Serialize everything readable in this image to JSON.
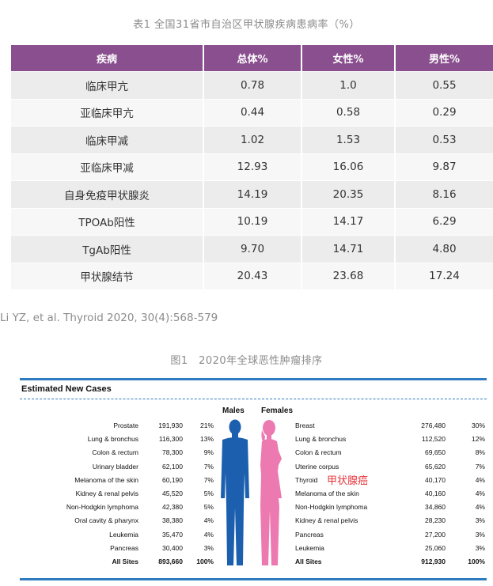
{
  "table1": {
    "caption": "表1 全国31省市自治区甲状腺疾病患病率（%）",
    "headers": [
      "疾病",
      "总体%",
      "女性%",
      "男性%"
    ],
    "rows": [
      [
        "临床甲亢",
        "0.78",
        "1.0",
        "0.55"
      ],
      [
        "亚临床甲亢",
        "0.44",
        "0.58",
        "0.29"
      ],
      [
        "临床甲减",
        "1.02",
        "1.53",
        "0.53"
      ],
      [
        "亚临床甲减",
        "12.93",
        "16.06",
        "9.87"
      ],
      [
        "自身免疫甲状腺炎",
        "14.19",
        "20.35",
        "8.16"
      ],
      [
        "TPOAb阳性",
        "10.19",
        "14.17",
        "6.29"
      ],
      [
        "TgAb阳性",
        "9.70",
        "14.71",
        "4.80"
      ],
      [
        "甲状腺结节",
        "20.43",
        "23.68",
        "17.24"
      ]
    ]
  },
  "citation": "Li YZ, et al. Thyroid 2020, 30(4):568-579",
  "figure1": {
    "caption": "图1　2020年全球恶性肿瘤排序",
    "title": "Estimated New Cases",
    "males_label": "Males",
    "females_label": "Females",
    "males": [
      [
        "Prostate",
        "191,930",
        "21%"
      ],
      [
        "Lung & bronchus",
        "116,300",
        "13%"
      ],
      [
        "Colon & rectum",
        "78,300",
        "9%"
      ],
      [
        "Urinary bladder",
        "62,100",
        "7%"
      ],
      [
        "Melanoma of the skin",
        "60,190",
        "7%"
      ],
      [
        "Kidney & renal pelvis",
        "45,520",
        "5%"
      ],
      [
        "Non-Hodgkin lymphoma",
        "42,380",
        "5%"
      ],
      [
        "Oral cavity & pharynx",
        "38,380",
        "4%"
      ],
      [
        "Leukemia",
        "35,470",
        "4%"
      ],
      [
        "Pancreas",
        "30,400",
        "3%"
      ]
    ],
    "males_total": [
      "All Sites",
      "893,660",
      "100%"
    ],
    "females": [
      [
        "Breast",
        "276,480",
        "30%"
      ],
      [
        "Lung & bronchus",
        "112,520",
        "12%"
      ],
      [
        "Colon & rectum",
        "69,650",
        "8%"
      ],
      [
        "Uterine corpus",
        "65,620",
        "7%"
      ],
      [
        "Thyroid",
        "40,170",
        "4%"
      ],
      [
        "Melanoma of the skin",
        "40,160",
        "4%"
      ],
      [
        "Non-Hodgkin lymphoma",
        "34,860",
        "4%"
      ],
      [
        "Kidney & renal pelvis",
        "28,230",
        "3%"
      ],
      [
        "Pancreas",
        "27,200",
        "3%"
      ],
      [
        "Leukemia",
        "25,060",
        "3%"
      ]
    ],
    "females_total": [
      "All Sites",
      "912,930",
      "100%"
    ],
    "thyroid_annotation": "甲状腺癌",
    "colors": {
      "male": "#1b5fae",
      "female": "#ec7ab0",
      "accent": "#e8353b",
      "header": "#8a4f8e",
      "rule": "#2e7bbf"
    }
  }
}
